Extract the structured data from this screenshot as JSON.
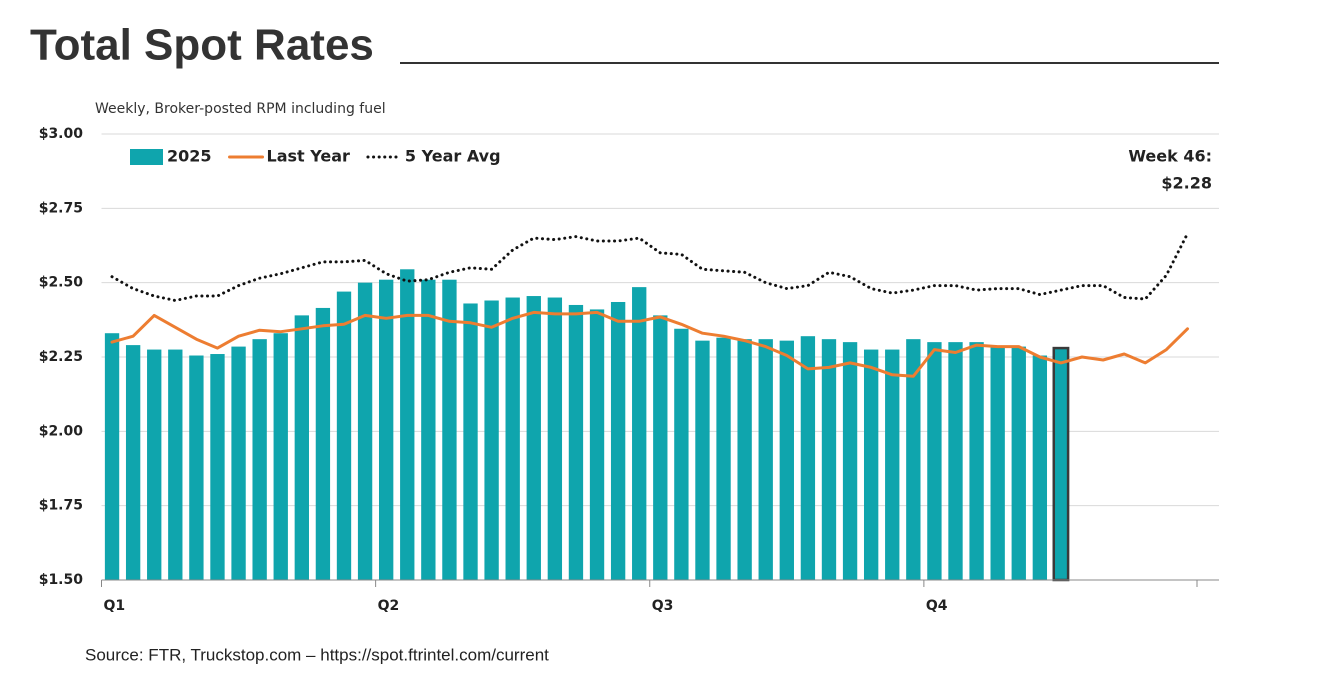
{
  "chart_data": {
    "type": "bar",
    "title": "Total Spot Rates",
    "subtitle": "Weekly, Broker-posted RPM including fuel",
    "source": "Source: FTR, Truckstop.com – https://spot.ftrintel.com/current",
    "annotation": [
      "Week 46:",
      "$2.28"
    ],
    "categories": [
      "Q1",
      null,
      null,
      null,
      null,
      null,
      null,
      null,
      null,
      null,
      null,
      null,
      null,
      "Q2",
      null,
      null,
      null,
      null,
      null,
      null,
      null,
      null,
      null,
      null,
      null,
      null,
      "Q3",
      null,
      null,
      null,
      null,
      null,
      null,
      null,
      null,
      null,
      null,
      null,
      null,
      "Q4",
      null,
      null,
      null,
      null,
      null,
      null,
      null,
      null,
      null,
      null,
      null,
      null
    ],
    "ylim": [
      1.5,
      3.0
    ],
    "yticks": [
      {
        "value": 1.5,
        "label": "$1.50"
      },
      {
        "value": 1.75,
        "label": "$1.75"
      },
      {
        "value": 2.0,
        "label": "$2.00"
      },
      {
        "value": 2.25,
        "label": "$2.25"
      },
      {
        "value": 2.5,
        "label": "$2.50"
      },
      {
        "value": 2.75,
        "label": "$2.75"
      },
      {
        "value": 3.0,
        "label": "$3.00"
      }
    ],
    "grid": true,
    "legend": "top-left",
    "highlight_edge_color": "#3a3a3a",
    "series": [
      {
        "name": "2025",
        "type": "bar",
        "color": "#0fa5ad",
        "values": [
          2.33,
          2.29,
          2.275,
          2.275,
          2.255,
          2.26,
          2.285,
          2.31,
          2.33,
          2.39,
          2.415,
          2.47,
          2.5,
          2.51,
          2.545,
          2.51,
          2.51,
          2.43,
          2.44,
          2.45,
          2.455,
          2.45,
          2.425,
          2.41,
          2.435,
          2.485,
          2.39,
          2.345,
          2.305,
          2.315,
          2.31,
          2.31,
          2.305,
          2.32,
          2.31,
          2.3,
          2.275,
          2.275,
          2.31,
          2.3,
          2.3,
          2.3,
          2.285,
          2.285,
          2.255,
          2.28,
          null,
          null,
          null,
          null,
          null,
          null
        ]
      },
      {
        "name": "Last Year",
        "type": "line",
        "color": "#ed7d31",
        "dash": "solid",
        "values": [
          2.3,
          2.32,
          2.39,
          2.35,
          2.31,
          2.28,
          2.32,
          2.34,
          2.335,
          2.345,
          2.355,
          2.36,
          2.39,
          2.38,
          2.39,
          2.39,
          2.37,
          2.365,
          2.35,
          2.38,
          2.4,
          2.395,
          2.395,
          2.4,
          2.37,
          2.37,
          2.385,
          2.36,
          2.33,
          2.32,
          2.305,
          2.285,
          2.255,
          2.21,
          2.215,
          2.23,
          2.215,
          2.19,
          2.185,
          2.275,
          2.265,
          2.29,
          2.285,
          2.285,
          2.25,
          2.23,
          2.25,
          2.24,
          2.26,
          2.23,
          2.275,
          2.345
        ]
      },
      {
        "name": "5 Year Avg",
        "type": "line",
        "color": "#111111",
        "dash": "dotted",
        "values": [
          2.52,
          2.48,
          2.455,
          2.44,
          2.455,
          2.455,
          2.49,
          2.515,
          2.53,
          2.55,
          2.57,
          2.57,
          2.575,
          2.53,
          2.505,
          2.51,
          2.535,
          2.55,
          2.545,
          2.61,
          2.65,
          2.645,
          2.655,
          2.64,
          2.64,
          2.65,
          2.6,
          2.595,
          2.545,
          2.54,
          2.535,
          2.5,
          2.48,
          2.49,
          2.535,
          2.52,
          2.48,
          2.465,
          2.475,
          2.49,
          2.49,
          2.475,
          2.48,
          2.48,
          2.46,
          2.475,
          2.49,
          2.49,
          2.45,
          2.445,
          2.525,
          2.665
        ]
      }
    ]
  }
}
